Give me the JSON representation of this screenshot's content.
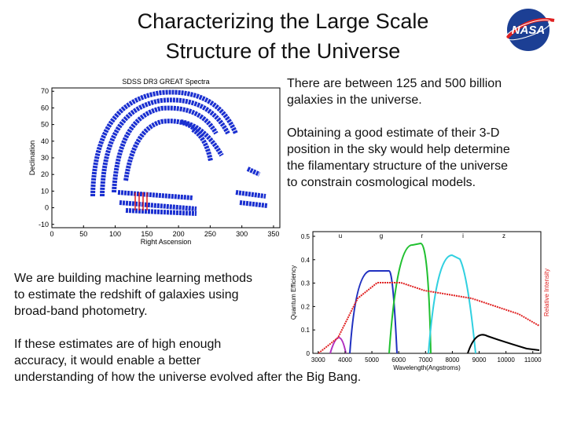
{
  "title": [
    "Characterizing the Large Scale",
    "Structure of the Universe"
  ],
  "logo_text": "NASA",
  "paragraphs": {
    "right": [
      [
        "There are between 125 and 500 billion",
        "galaxies in the universe."
      ],
      [
        "Obtaining a good estimate of their 3-D",
        "position in the sky would help determine",
        "the filamentary structure of the universe",
        "to constrain cosmological models."
      ]
    ],
    "left": [
      [
        "We are building machine learning methods",
        "to estimate the redshift of galaxies using",
        "broad-band photometry."
      ],
      [
        "If these estimates are of high enough",
        "accuracy, it would enable a better",
        "understanding of how the universe evolved after the Big Bang."
      ]
    ]
  },
  "figures": [
    {
      "title": "SDSS DR3 GREAT Spectra",
      "xlabel": "Right Ascension",
      "ylabel": "Declination",
      "xlim": [
        0,
        360
      ],
      "ylim": [
        -12,
        72
      ],
      "xticks": [
        0,
        50,
        100,
        150,
        200,
        250,
        300,
        350
      ],
      "yticks": [
        -10,
        0,
        10,
        20,
        30,
        40,
        50,
        60,
        70
      ]
    },
    {
      "xlabel": "Wavelength(Angstroms)",
      "ylabel": "Quantum Efficiency",
      "y2label": "Relative Intensity",
      "band_labels": [
        "u",
        "g",
        "r",
        "i",
        "z"
      ],
      "xlim": [
        2800,
        11300
      ],
      "ylim": [
        0,
        0.52
      ],
      "xticks": [
        3000,
        4000,
        5000,
        6000,
        7000,
        8000,
        9000,
        10000,
        11000
      ],
      "yticks": [
        0,
        0.1,
        0.2,
        0.3,
        0.4,
        0.5
      ]
    }
  ]
}
